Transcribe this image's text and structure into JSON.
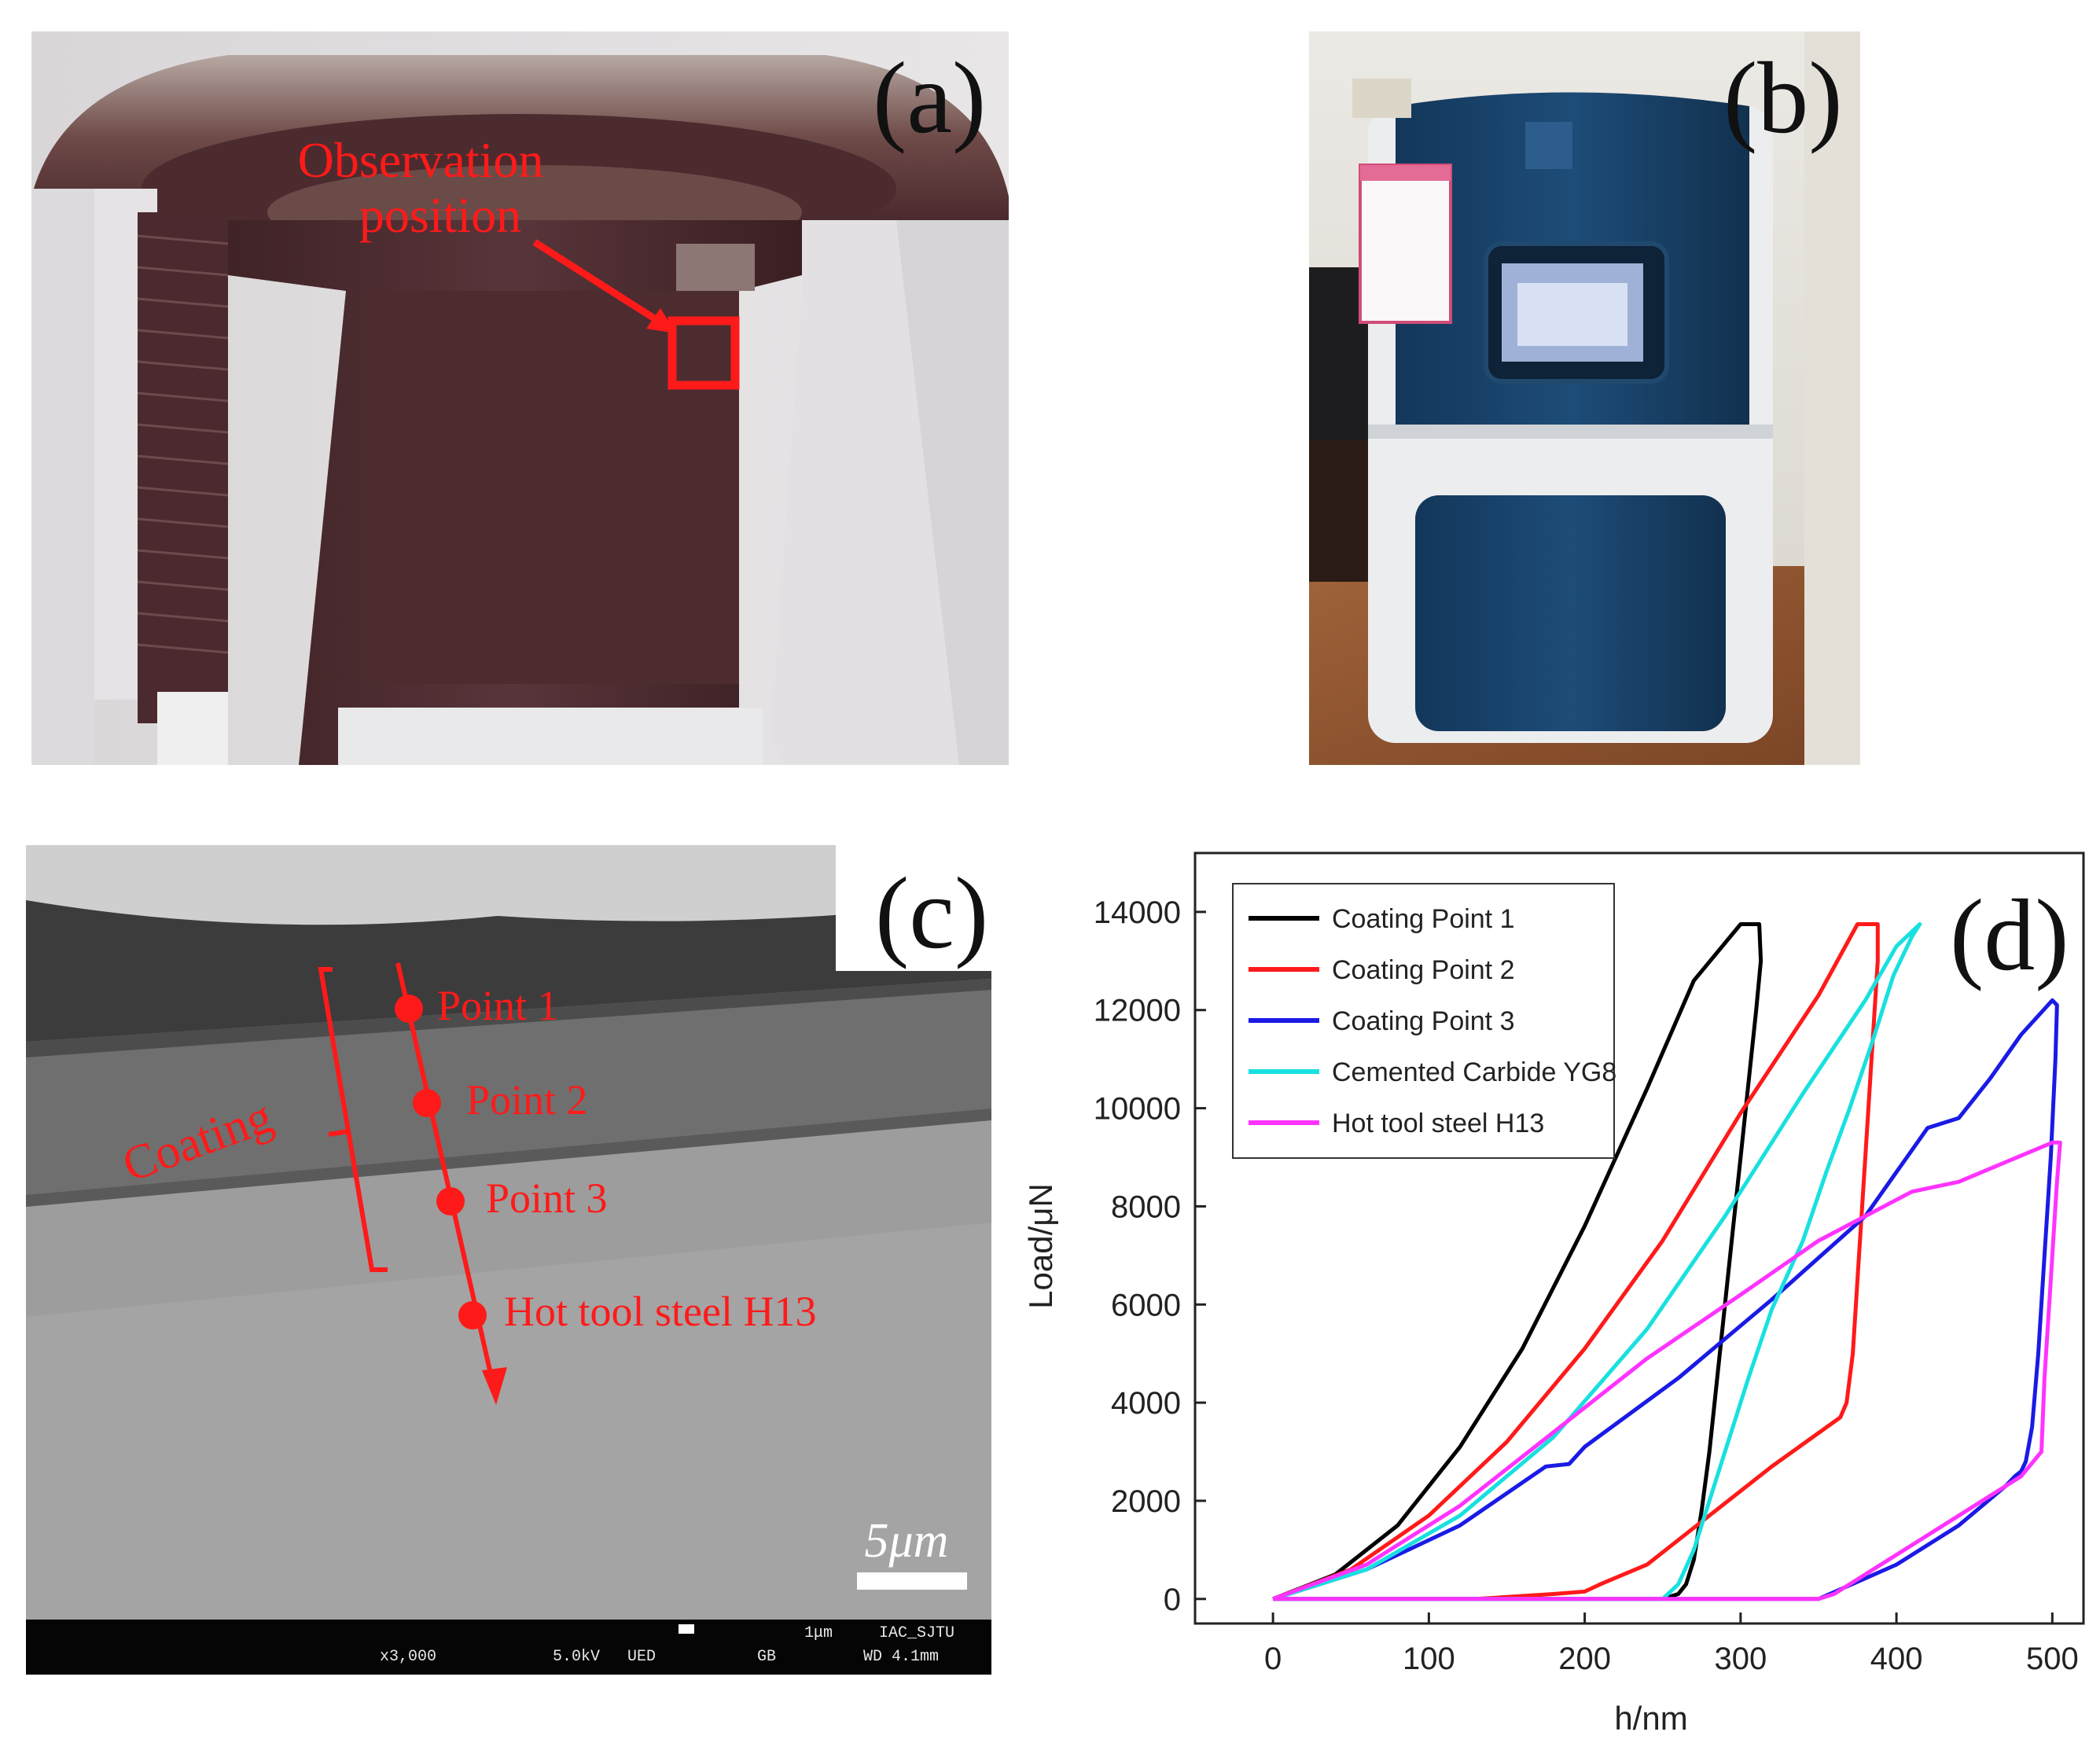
{
  "panels": {
    "a": {
      "label": "(a)",
      "annotation_line1": "Observation",
      "annotation_line2": "position"
    },
    "b": {
      "label": "(b)"
    },
    "c": {
      "label": "(c)",
      "points": [
        "Point 1",
        "Point 2",
        "Point 3",
        "Hot tool steel H13"
      ],
      "bracket_label": "Coating",
      "scale_bar": "5μm",
      "sem_info": {
        "scale_text": "1μm",
        "facility": "IAC_SJTU",
        "magnification": "x3,000",
        "voltage": "5.0kV",
        "detector": "UED",
        "mode": "GB",
        "wd": "WD 4.1mm"
      }
    },
    "d": {
      "label": "(d)"
    }
  },
  "colors": {
    "annotation_red": "#ff1a1a",
    "chart_black": "#000000",
    "chart_red": "#ff1a1a",
    "chart_blue": "#1a1ae6",
    "chart_cyan": "#19e0e0",
    "chart_magenta": "#ff33ff"
  },
  "chart_data": {
    "type": "line",
    "xlabel": "h/nm",
    "ylabel": "Load/μN",
    "xlim": [
      -50,
      520
    ],
    "ylim": [
      -500,
      15200
    ],
    "xticks": [
      0,
      100,
      200,
      300,
      400,
      500
    ],
    "yticks": [
      0,
      2000,
      4000,
      6000,
      8000,
      10000,
      12000,
      14000
    ],
    "legend_position": "top-left",
    "series": [
      {
        "name": "Coating Point 1",
        "color": "#000000",
        "x": [
          0,
          40,
          80,
          120,
          160,
          200,
          240,
          270,
          300,
          305,
          312,
          313,
          310,
          305,
          300,
          295,
          290,
          285,
          280,
          275,
          270,
          265,
          260,
          250,
          0
        ],
        "y": [
          0,
          500,
          1500,
          3100,
          5100,
          7600,
          10400,
          12600,
          13750,
          13750,
          13750,
          13000,
          12000,
          10500,
          9000,
          7500,
          6000,
          4500,
          3000,
          1800,
          800,
          300,
          100,
          0,
          0
        ]
      },
      {
        "name": "Coating Point 2",
        "color": "#ff1a1a",
        "x": [
          0,
          50,
          100,
          150,
          200,
          250,
          300,
          350,
          375,
          388,
          388,
          384,
          380,
          376,
          372,
          368,
          364,
          320,
          280,
          240,
          210,
          200,
          180,
          130,
          0
        ],
        "y": [
          0,
          600,
          1700,
          3200,
          5100,
          7300,
          9900,
          12300,
          13750,
          13750,
          13000,
          11000,
          9000,
          7000,
          5000,
          4000,
          3700,
          2700,
          1700,
          700,
          300,
          150,
          100,
          0,
          0
        ]
      },
      {
        "name": "Coating Point 3",
        "color": "#1a1ae6",
        "x": [
          0,
          60,
          120,
          175,
          190,
          200,
          260,
          320,
          380,
          420,
          440,
          460,
          480,
          500,
          503,
          502,
          499,
          495,
          491,
          487,
          483,
          480,
          476,
          470,
          440,
          400,
          350,
          0
        ],
        "y": [
          0,
          600,
          1500,
          2700,
          2750,
          3100,
          4500,
          6100,
          7800,
          9600,
          9800,
          10600,
          11500,
          12200,
          12100,
          11000,
          9000,
          7000,
          5000,
          3500,
          2800,
          2600,
          2500,
          2300,
          1500,
          700,
          0,
          0
        ]
      },
      {
        "name": "Cemented Carbide YG8",
        "color": "#19e0e0",
        "x": [
          0,
          60,
          120,
          180,
          240,
          290,
          340,
          380,
          400,
          415,
          410,
          398,
          385,
          370,
          355,
          340,
          320,
          305,
          290,
          280,
          270,
          260,
          250,
          200,
          0
        ],
        "y": [
          0,
          600,
          1700,
          3300,
          5500,
          7800,
          10300,
          12200,
          13300,
          13750,
          13500,
          12700,
          11400,
          10000,
          8700,
          7300,
          5900,
          4500,
          3000,
          2000,
          1000,
          300,
          0,
          0,
          0
        ]
      },
      {
        "name": "Hot tool steel H13",
        "color": "#ff33ff",
        "x": [
          0,
          60,
          120,
          180,
          240,
          300,
          350,
          380,
          410,
          440,
          470,
          500,
          505,
          503,
          501,
          499,
          497,
          495,
          493,
          480,
          470,
          440,
          400,
          360,
          350,
          0
        ],
        "y": [
          0,
          700,
          1900,
          3400,
          4900,
          6200,
          7300,
          7800,
          8300,
          8500,
          8900,
          9300,
          9300,
          8500,
          7500,
          6500,
          5500,
          4500,
          3000,
          2500,
          2300,
          1700,
          900,
          100,
          0,
          0
        ]
      }
    ]
  }
}
